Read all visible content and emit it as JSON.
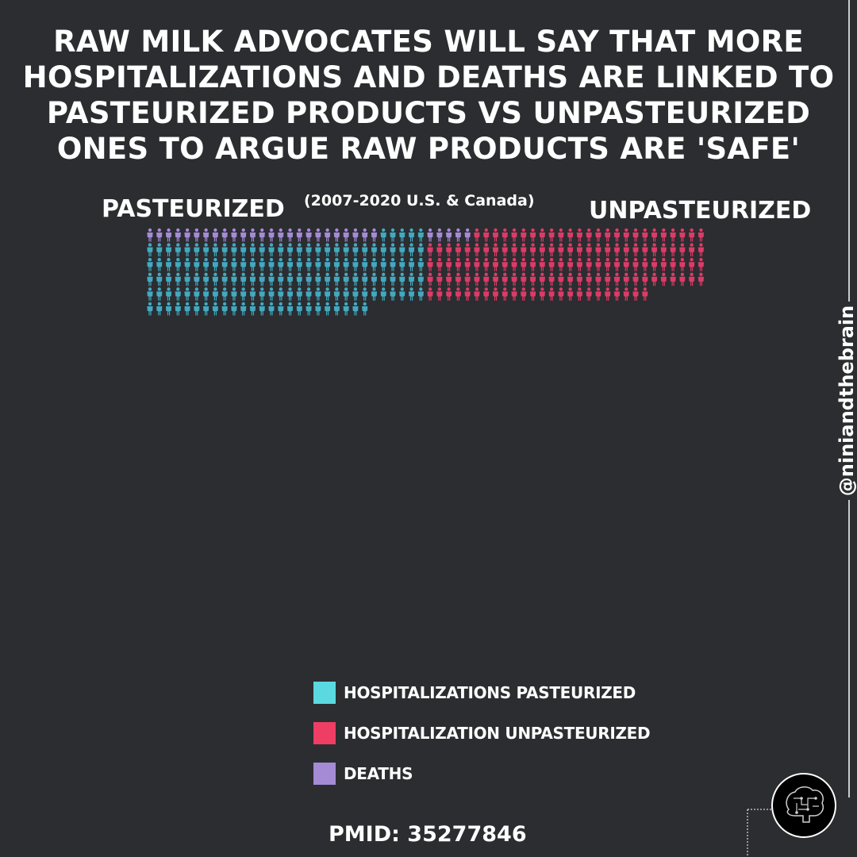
{
  "title": "Raw milk advocates will say that more hospitalizations and deaths are linked to pasteurized products vs unpasteurized ones to argue raw products are 'safe'",
  "subtitle": "(2007-2020 U.S. & Canada)",
  "handle": "@niniandthebrain",
  "source": "PMID: 35277846",
  "colors": {
    "background": "#2b2d30",
    "hospitalizations_pasteurized": "#43a9c1",
    "hospitalization_unpasteurized": "#dc3b68",
    "deaths": "#a58ad6"
  },
  "chart_data": {
    "type": "pictogram",
    "unit": "one person icon per case",
    "groups": [
      {
        "label": "PASTEURIZED",
        "deaths": 25,
        "hospitalizations": 149,
        "hospitalizations_series": "Hospitalizations pasteurized"
      },
      {
        "label": "UNPASTEURIZED",
        "deaths": 5,
        "hospitalizations": 139,
        "hospitalizations_series": "Hospitalization unpasteurized"
      }
    ],
    "legend": [
      {
        "label": "HOSPITALIZATIONS PASTEURIZED",
        "color": "#5ad9e0"
      },
      {
        "label": "HOSPITALIZATION UNPASTEURIZED",
        "color": "#ee3e64"
      },
      {
        "label": "DEATHS",
        "color": "#a58ad6"
      }
    ]
  },
  "logo": "brain-logo-icon"
}
